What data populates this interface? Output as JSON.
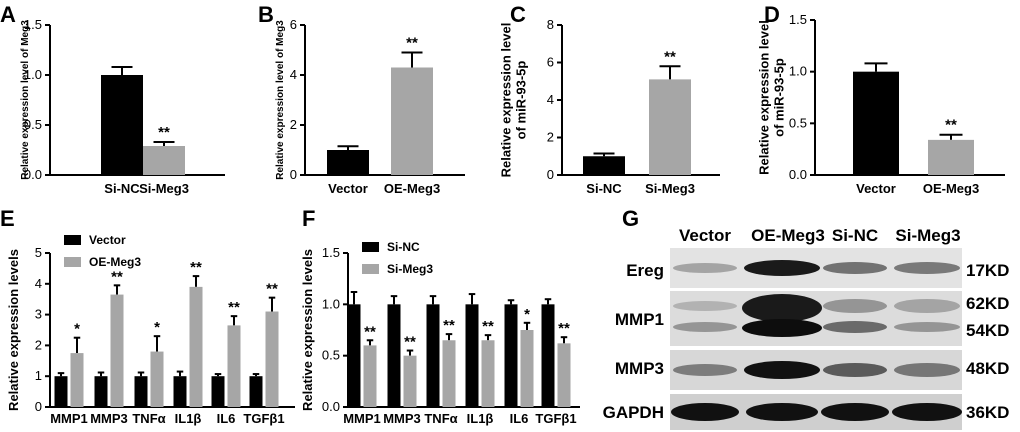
{
  "colors": {
    "black_bar": "#000000",
    "gray_bar": "#a6a6a6"
  },
  "chart_data": [
    {
      "panel": "A",
      "type": "bar",
      "ylabel": "Relative expression level of Meg3",
      "categories": [
        "Si-NC",
        "Si-Meg3"
      ],
      "values": [
        1.0,
        0.29
      ],
      "errors": [
        0.08,
        0.04
      ],
      "colors": [
        "#000000",
        "#a6a6a6"
      ],
      "significance": [
        "",
        "**"
      ],
      "ylim": [
        0,
        1.5
      ],
      "yticks": [
        "0.0",
        "0.5",
        "1.0",
        "1.5"
      ]
    },
    {
      "panel": "B",
      "type": "bar",
      "ylabel": "Relative expression level of Meg3",
      "categories": [
        "Vector",
        "OE-Meg3"
      ],
      "values": [
        1.0,
        4.3
      ],
      "errors": [
        0.15,
        0.6
      ],
      "colors": [
        "#000000",
        "#a6a6a6"
      ],
      "significance": [
        "",
        "**"
      ],
      "ylim": [
        0,
        6
      ],
      "yticks": [
        "0",
        "2",
        "4",
        "6"
      ]
    },
    {
      "panel": "C",
      "type": "bar",
      "ylabel": [
        "Relative expression level",
        "of miR-93-5p"
      ],
      "categories": [
        "Si-NC",
        "Si-Meg3"
      ],
      "values": [
        1.0,
        5.1
      ],
      "errors": [
        0.15,
        0.7
      ],
      "colors": [
        "#000000",
        "#a6a6a6"
      ],
      "significance": [
        "",
        "**"
      ],
      "ylim": [
        0,
        8
      ],
      "yticks": [
        "0",
        "2",
        "4",
        "6",
        "8"
      ]
    },
    {
      "panel": "D",
      "type": "bar",
      "ylabel": [
        "Relative expression level",
        "of miR-93-5p"
      ],
      "categories": [
        "Vector",
        "OE-Meg3"
      ],
      "values": [
        1.0,
        0.34
      ],
      "errors": [
        0.08,
        0.05
      ],
      "colors": [
        "#000000",
        "#a6a6a6"
      ],
      "significance": [
        "",
        "**"
      ],
      "ylim": [
        0,
        1.5
      ],
      "yticks": [
        "0.0",
        "0.5",
        "1.0",
        "1.5"
      ]
    },
    {
      "panel": "E",
      "type": "bar",
      "ylabel": "Relative expression levels",
      "categories": [
        "MMP1",
        "MMP3",
        "TNFα",
        "IL1β",
        "IL6",
        "TGFβ1"
      ],
      "series": [
        {
          "name": "Vector",
          "color": "#000000",
          "values": [
            1.0,
            1.0,
            1.0,
            1.0,
            1.0,
            1.0
          ],
          "errors": [
            0.1,
            0.12,
            0.12,
            0.15,
            0.07,
            0.07
          ]
        },
        {
          "name": "OE-Meg3",
          "color": "#a6a6a6",
          "values": [
            1.75,
            3.65,
            1.8,
            3.9,
            2.65,
            3.1
          ],
          "errors": [
            0.5,
            0.3,
            0.5,
            0.35,
            0.3,
            0.45
          ]
        }
      ],
      "significance": [
        "*",
        "**",
        "*",
        "**",
        "**",
        "**"
      ],
      "ylim": [
        0,
        5
      ],
      "yticks": [
        "0",
        "1",
        "2",
        "3",
        "4",
        "5"
      ],
      "legend": "top-left"
    },
    {
      "panel": "F",
      "type": "bar",
      "ylabel": "Relative expression levels",
      "categories": [
        "MMP1",
        "MMP3",
        "TNFα",
        "IL1β",
        "IL6",
        "TGFβ1"
      ],
      "series": [
        {
          "name": "Si-NC",
          "color": "#000000",
          "values": [
            1.0,
            1.0,
            1.0,
            1.0,
            1.0,
            1.0
          ],
          "errors": [
            0.12,
            0.08,
            0.08,
            0.1,
            0.04,
            0.05
          ]
        },
        {
          "name": "Si-Meg3",
          "color": "#a6a6a6",
          "values": [
            0.6,
            0.5,
            0.65,
            0.65,
            0.75,
            0.62
          ],
          "errors": [
            0.05,
            0.05,
            0.06,
            0.05,
            0.07,
            0.06
          ]
        }
      ],
      "significance": [
        "**",
        "**",
        "**",
        "**",
        "*",
        "**"
      ],
      "ylim": [
        0,
        1.5
      ],
      "yticks": [
        "0.0",
        "0.5",
        "1.0",
        "1.5"
      ],
      "legend": "top-left"
    }
  ],
  "western_blot": {
    "panel": "G",
    "columns": [
      "Vector",
      "OE-Meg3",
      "Si-NC",
      "Si-Meg3"
    ],
    "rows": [
      {
        "name": "Ereg",
        "sizes": [
          "17KD"
        ]
      },
      {
        "name": "MMP1",
        "sizes": [
          "62KD",
          "54KD"
        ]
      },
      {
        "name": "MMP3",
        "sizes": [
          "48KD"
        ]
      },
      {
        "name": "GAPDH",
        "sizes": [
          "36KD"
        ]
      }
    ]
  }
}
